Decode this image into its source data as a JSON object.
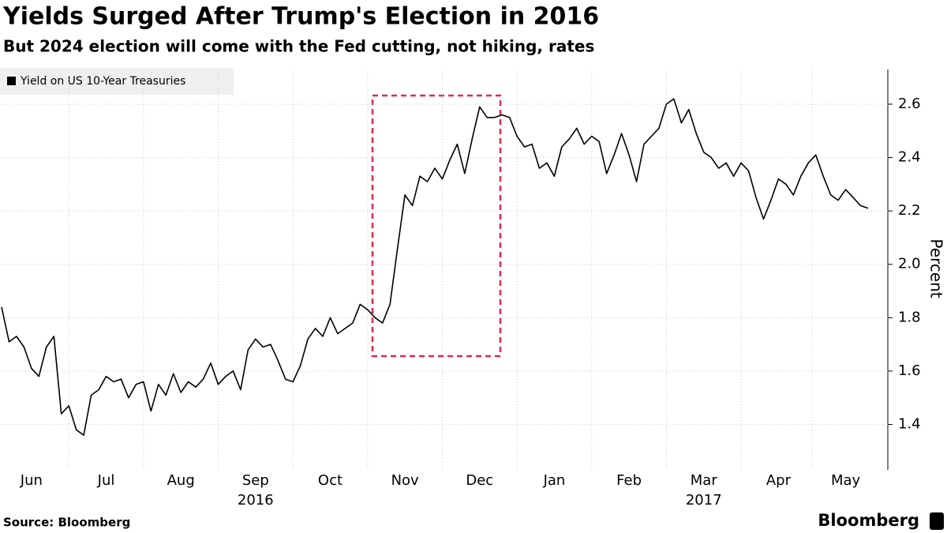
{
  "chart_data": {
    "type": "line",
    "title": "Yields Surged After Trump's Election in 2016",
    "subtitle": "But 2024 election will come with the Fed cutting, not hiking, rates",
    "y_axis_label": "Percent",
    "source": "Source: Bloomberg",
    "brand": "Bloomberg",
    "categories": [
      null,
      null,
      null,
      null,
      "Jun",
      null,
      null,
      null,
      null,
      null,
      null,
      null,
      null,
      null,
      "Jul",
      null,
      null,
      null,
      null,
      null,
      null,
      null,
      null,
      null,
      "Aug",
      null,
      null,
      null,
      null,
      null,
      null,
      null,
      null,
      null,
      "Sep",
      null,
      null,
      null,
      null,
      null,
      null,
      null,
      null,
      null,
      "Oct",
      null,
      null,
      null,
      null,
      null,
      null,
      null,
      null,
      null,
      "Nov",
      null,
      null,
      null,
      null,
      null,
      null,
      null,
      null,
      null,
      "Dec",
      null,
      null,
      null,
      null,
      null,
      null,
      null,
      null,
      null,
      "Jan",
      null,
      null,
      null,
      null,
      null,
      null,
      null,
      null,
      null,
      "Feb",
      null,
      null,
      null,
      null,
      null,
      null,
      null,
      null,
      null,
      "Mar",
      null,
      null,
      null,
      null,
      null,
      null,
      null,
      null,
      null,
      "Apr",
      null,
      null,
      null,
      null,
      null,
      null,
      null,
      null,
      "May",
      null,
      null,
      null
    ],
    "year_labels": [
      null,
      null,
      null,
      null,
      null,
      null,
      null,
      null,
      null,
      null,
      null,
      null,
      null,
      null,
      null,
      null,
      null,
      null,
      null,
      null,
      null,
      null,
      null,
      null,
      null,
      null,
      null,
      null,
      null,
      null,
      null,
      null,
      null,
      null,
      "2016",
      null,
      null,
      null,
      null,
      null,
      null,
      null,
      null,
      null,
      null,
      null,
      null,
      null,
      null,
      null,
      null,
      null,
      null,
      null,
      null,
      null,
      null,
      null,
      null,
      null,
      null,
      null,
      null,
      null,
      null,
      null,
      null,
      null,
      null,
      null,
      null,
      null,
      null,
      null,
      null,
      null,
      null,
      null,
      null,
      null,
      null,
      null,
      null,
      null,
      null,
      null,
      null,
      null,
      null,
      null,
      null,
      null,
      null,
      null,
      "2017",
      null,
      null,
      null,
      null,
      null,
      null,
      null,
      null,
      null,
      null,
      null,
      null,
      null,
      null,
      null,
      null,
      null,
      null,
      null,
      null,
      null,
      null
    ],
    "series": [
      {
        "name": "Yield on US 10-Year Treasuries",
        "color": "#000000",
        "values": [
          1.84,
          1.71,
          1.73,
          1.69,
          1.61,
          1.58,
          1.69,
          1.73,
          1.44,
          1.47,
          1.38,
          1.36,
          1.51,
          1.53,
          1.58,
          1.56,
          1.57,
          1.5,
          1.55,
          1.56,
          1.45,
          1.55,
          1.51,
          1.59,
          1.52,
          1.56,
          1.54,
          1.57,
          1.63,
          1.55,
          1.58,
          1.6,
          1.53,
          1.68,
          1.72,
          1.69,
          1.7,
          1.64,
          1.57,
          1.56,
          1.62,
          1.72,
          1.76,
          1.73,
          1.8,
          1.74,
          1.76,
          1.78,
          1.85,
          1.83,
          1.8,
          1.78,
          1.85,
          2.06,
          2.26,
          2.22,
          2.33,
          2.31,
          2.36,
          2.32,
          2.39,
          2.45,
          2.34,
          2.47,
          2.59,
          2.55,
          2.55,
          2.56,
          2.55,
          2.48,
          2.44,
          2.45,
          2.36,
          2.38,
          2.33,
          2.44,
          2.47,
          2.51,
          2.45,
          2.48,
          2.46,
          2.34,
          2.41,
          2.49,
          2.41,
          2.31,
          2.45,
          2.48,
          2.51,
          2.6,
          2.62,
          2.53,
          2.58,
          2.49,
          2.42,
          2.4,
          2.36,
          2.38,
          2.33,
          2.38,
          2.35,
          2.25,
          2.17,
          2.24,
          2.32,
          2.3,
          2.26,
          2.33,
          2.38,
          2.41,
          2.33,
          2.26,
          2.24,
          2.28,
          2.25,
          2.22,
          2.21
        ]
      }
    ],
    "ylim": [
      1.23,
      2.73
    ],
    "yticks": [
      {
        "value": 1.4,
        "label": "1.4"
      },
      {
        "value": 1.6,
        "label": "1.6"
      },
      {
        "value": 1.8,
        "label": "1.8"
      },
      {
        "value": 2.0,
        "label": "2.0"
      },
      {
        "value": 2.2,
        "label": "2.2"
      },
      {
        "value": 2.4,
        "label": "2.4"
      },
      {
        "value": 2.6,
        "label": "2.6"
      }
    ],
    "grid": true
  }
}
